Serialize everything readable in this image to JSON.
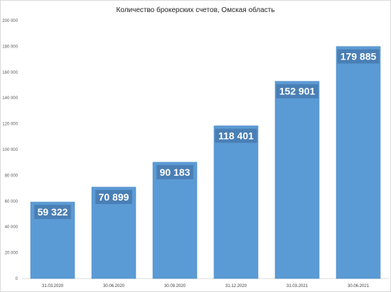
{
  "chart_data": {
    "type": "bar",
    "title": "Количество брокерских счетов, Омская область",
    "categories": [
      "31.03.2020",
      "30.06.2020",
      "30.09.2020",
      "31.12.2020",
      "31.03.2021",
      "30.06.2021"
    ],
    "values": [
      59322,
      70899,
      90183,
      118401,
      152901,
      179885
    ],
    "data_labels": [
      "59 322",
      "70 899",
      "90 183",
      "118 401",
      "152 901",
      "179 885"
    ],
    "y_ticks": [
      0,
      20000,
      40000,
      60000,
      80000,
      100000,
      120000,
      140000,
      160000,
      180000,
      200000
    ],
    "y_tick_labels": [
      "0",
      "20 000",
      "40 000",
      "60 000",
      "80 000",
      "100 000",
      "120 000",
      "140 000",
      "160 000",
      "180 000",
      "200 000"
    ],
    "ylim": [
      0,
      200000
    ],
    "xlabel": "",
    "ylabel": "",
    "grid": false,
    "legend": "none",
    "bar_color": "#5b9bd5",
    "label_box_color": "#4a7fb5"
  }
}
